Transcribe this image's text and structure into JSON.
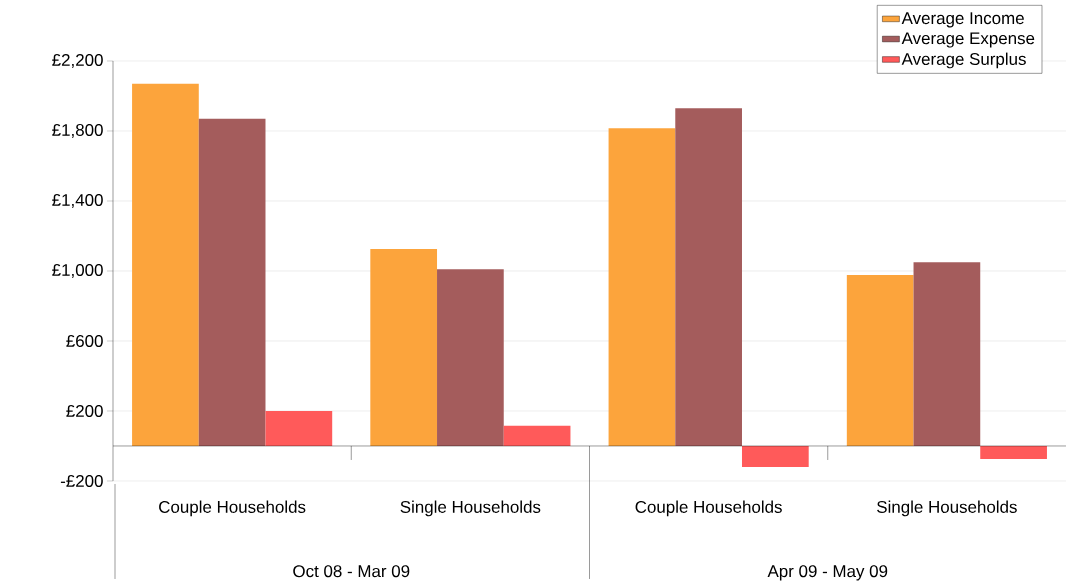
{
  "chart_data": {
    "type": "bar",
    "categories": [
      "Couple Households",
      "Single Households",
      "Couple Households",
      "Single Households"
    ],
    "series": [
      {
        "name": "Average Income",
        "color": "#fca43c",
        "values": [
          2070,
          1125,
          1815,
          977
        ]
      },
      {
        "name": "Average Expense",
        "color": "#a45c5c",
        "values": [
          1870,
          1010,
          1930,
          1050
        ]
      },
      {
        "name": "Average Surplus",
        "color": "#ff5a5a",
        "values": [
          200,
          115,
          -120,
          -75
        ]
      }
    ],
    "ylim": [
      -200,
      2200
    ],
    "yticks": [
      {
        "value": -200,
        "label": "-£200"
      },
      {
        "value": 200,
        "label": "£200"
      },
      {
        "value": 600,
        "label": "£600"
      },
      {
        "value": 1000,
        "label": "£1,000"
      },
      {
        "value": 1400,
        "label": "£1,400"
      },
      {
        "value": 1800,
        "label": "£1,800"
      },
      {
        "value": 2200,
        "label": "£2,200"
      }
    ],
    "grid": "y",
    "legend": "top right",
    "annotations": [
      "Oct 08 - Mar 09",
      "Apr 09 - May 09"
    ]
  }
}
